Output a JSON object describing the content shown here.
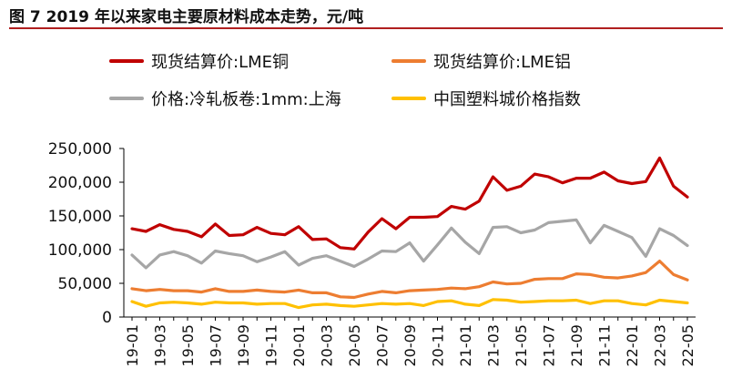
{
  "figure": {
    "title": "图 7 2019 年以来家电主要原材料成本走势，元/吨"
  },
  "chart_data": {
    "type": "line",
    "ylim": [
      0,
      250000
    ],
    "y_ticks": [
      "250,000",
      "200,000",
      "150,000",
      "100,000",
      "50,000",
      "0"
    ],
    "y_tick_values": [
      250000,
      200000,
      150000,
      100000,
      50000,
      0
    ],
    "x_tick_labels": [
      "19-01",
      "19-03",
      "19-05",
      "19-07",
      "19-09",
      "19-11",
      "20-01",
      "20-03",
      "20-05",
      "20-07",
      "20-09",
      "20-11",
      "21-01",
      "21-03",
      "21-05",
      "21-07",
      "21-09",
      "21-11",
      "22-01",
      "22-03",
      "22-05"
    ],
    "x": [
      "19-01",
      "19-02",
      "19-03",
      "19-04",
      "19-05",
      "19-06",
      "19-07",
      "19-08",
      "19-09",
      "19-10",
      "19-11",
      "19-12",
      "20-01",
      "20-02",
      "20-03",
      "20-04",
      "20-05",
      "20-06",
      "20-07",
      "20-08",
      "20-09",
      "20-10",
      "20-11",
      "20-12",
      "21-01",
      "21-02",
      "21-03",
      "21-04",
      "21-05",
      "21-06",
      "21-07",
      "21-08",
      "21-09",
      "21-10",
      "21-11",
      "21-12",
      "22-01",
      "22-02",
      "22-03",
      "22-04",
      "22-05"
    ],
    "grid": false,
    "legend_position": "top",
    "series": [
      {
        "name": "现货结算价:LME铜",
        "color": "#c00000",
        "values": [
          131000,
          127000,
          137000,
          130000,
          127000,
          119000,
          138000,
          121000,
          122000,
          133000,
          124000,
          122000,
          134000,
          115000,
          116000,
          103000,
          101000,
          126000,
          146000,
          131000,
          148000,
          148000,
          149000,
          164000,
          160000,
          172000,
          208000,
          188000,
          194000,
          212000,
          208000,
          199000,
          206000,
          206000,
          215000,
          202000,
          198000,
          201000,
          236000,
          194000,
          178000
        ]
      },
      {
        "name": "现货结算价:LME铝",
        "color": "#ed7d31",
        "values": [
          42000,
          39000,
          41000,
          39000,
          39000,
          37000,
          42000,
          38000,
          38000,
          40000,
          38000,
          37000,
          40000,
          36000,
          36000,
          30000,
          29000,
          34000,
          38000,
          36000,
          39000,
          40000,
          41000,
          43000,
          42000,
          45000,
          52000,
          49000,
          50000,
          56000,
          57000,
          57000,
          64000,
          63000,
          59000,
          58000,
          61000,
          66000,
          83000,
          63000,
          55000
        ]
      },
      {
        "name": "价格:冷轧板卷:1mm:上海",
        "color": "#a6a6a6",
        "values": [
          92000,
          73000,
          92000,
          97000,
          91000,
          80000,
          98000,
          94000,
          91000,
          82000,
          89000,
          97000,
          77000,
          87000,
          91000,
          83000,
          75000,
          86000,
          98000,
          97000,
          110000,
          83000,
          107000,
          132000,
          111000,
          94000,
          133000,
          134000,
          125000,
          129000,
          140000,
          142000,
          144000,
          110000,
          136000,
          127000,
          118000,
          90000,
          131000,
          121000,
          106000
        ]
      },
      {
        "name": "中国塑料城价格指数",
        "color": "#ffc000",
        "values": [
          23000,
          16000,
          21000,
          22000,
          21000,
          19000,
          22000,
          21000,
          21000,
          19000,
          20000,
          20000,
          14000,
          18000,
          19000,
          17000,
          16000,
          18000,
          20000,
          19000,
          20000,
          17000,
          23000,
          24000,
          19000,
          17000,
          26000,
          25000,
          22000,
          23000,
          24000,
          24000,
          25000,
          20000,
          24000,
          24000,
          20000,
          18000,
          25000,
          23000,
          21000
        ]
      }
    ]
  }
}
